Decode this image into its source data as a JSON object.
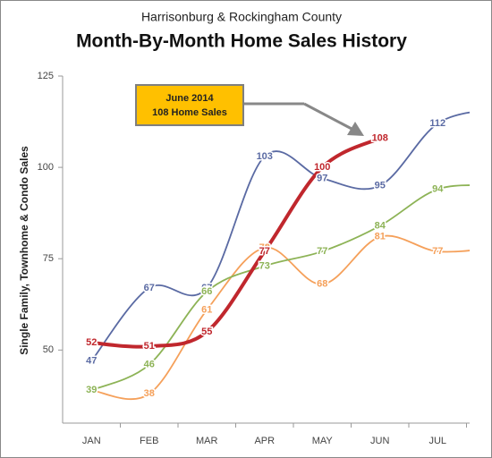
{
  "chart_data": {
    "type": "line",
    "title": "Harrisonburg & Rockingham County",
    "subtitle": "Month-By-Month Home Sales History",
    "y_label": "Single Family, Townhome & Condo Sales",
    "annotation": [
      "June 2014",
      "108 Home Sales"
    ],
    "categories": [
      "JAN",
      "FEB",
      "MAR",
      "APR",
      "MAY",
      "JUN",
      "JUL",
      null
    ],
    "series": [
      {
        "color": "#5a6aa3",
        "values": [
          47,
          67,
          67,
          103,
          97,
          95,
          112,
          116
        ]
      },
      {
        "color": "#f5a05a",
        "values": [
          39,
          38,
          61,
          78,
          68,
          81,
          77,
          78
        ]
      },
      {
        "color": "#8db356",
        "values": [
          39,
          46,
          66,
          73,
          77,
          84,
          94,
          95
        ]
      },
      {
        "color": "#c0272d",
        "values": [
          52,
          51,
          55,
          77,
          100,
          108,
          null,
          null
        ]
      }
    ],
    "ylim": [
      30,
      125
    ],
    "yticks": [
      50,
      75,
      100,
      125
    ],
    "grid": false
  }
}
